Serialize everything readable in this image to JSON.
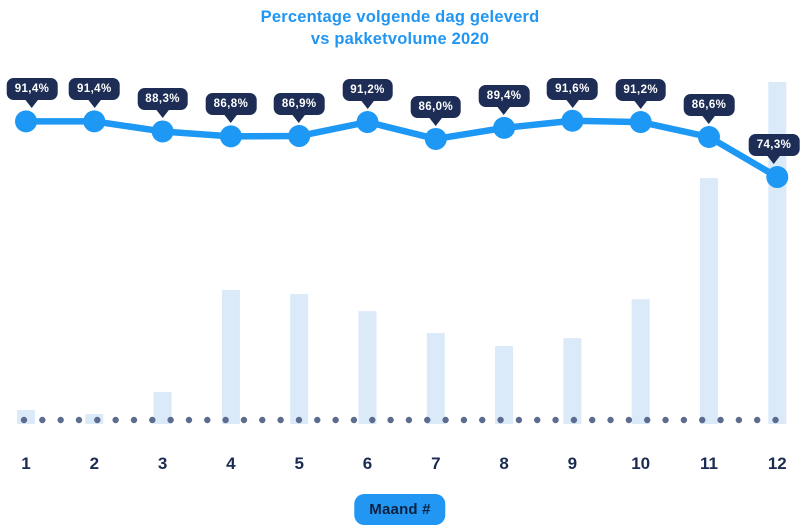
{
  "title": {
    "line1": "Percentage volgende dag geleverd",
    "line2": "vs pakketvolume 2020"
  },
  "x_axis": {
    "badge_label": "Maand #",
    "categories": [
      "1",
      "2",
      "3",
      "4",
      "5",
      "6",
      "7",
      "8",
      "9",
      "10",
      "11",
      "12"
    ]
  },
  "chart_data": {
    "type": "combo",
    "title": "Percentage volgende dag geleverd vs pakketvolume 2020",
    "categories": [
      1,
      2,
      3,
      4,
      5,
      6,
      7,
      8,
      9,
      10,
      11,
      12
    ],
    "xlabel_badge": "Maand #",
    "legend": "none",
    "grid": "off",
    "series": [
      {
        "name": "Percentage volgende dag geleverd",
        "type": "line",
        "unit": "%",
        "values": [
          91.4,
          91.4,
          88.3,
          86.8,
          86.9,
          91.2,
          86.0,
          89.4,
          91.6,
          91.2,
          86.6,
          74.3
        ],
        "labels": [
          "91,4%",
          "91,4%",
          "88,3%",
          "86,8%",
          "86,9%",
          "91,2%",
          "86,0%",
          "89,4%",
          "91,6%",
          "91,2%",
          "86,6%",
          "74,3%"
        ],
        "ylim": [
          70,
          95
        ],
        "color": "#1e98f5",
        "label_bubble_bg": "#1d2d55",
        "label_bubble_text": "#ffffff"
      },
      {
        "name": "Pakketvolume 2020",
        "type": "bar",
        "unit": "relative (no numeric axis shown, tallest bar = 100)",
        "values": [
          4.1,
          2.9,
          9.4,
          39.2,
          38.0,
          33.0,
          26.6,
          22.8,
          25.1,
          36.5,
          71.9,
          100
        ],
        "ylim": [
          0,
          100
        ],
        "color": "#dbeaf9"
      }
    ],
    "baseline_dots_color": "#5b6c8e"
  },
  "colors": {
    "title_text": "#2196f3",
    "line": "#1e98f5",
    "tooltip_bg": "#1d2d55",
    "tooltip_text": "#ffffff",
    "bar_fill": "#dbeaf9",
    "dot_row": "#5b6c8e",
    "axis_label_text": "#1b2b52",
    "badge_bg": "#2196f3",
    "badge_text": "#0e2240",
    "background": "#ffffff"
  }
}
